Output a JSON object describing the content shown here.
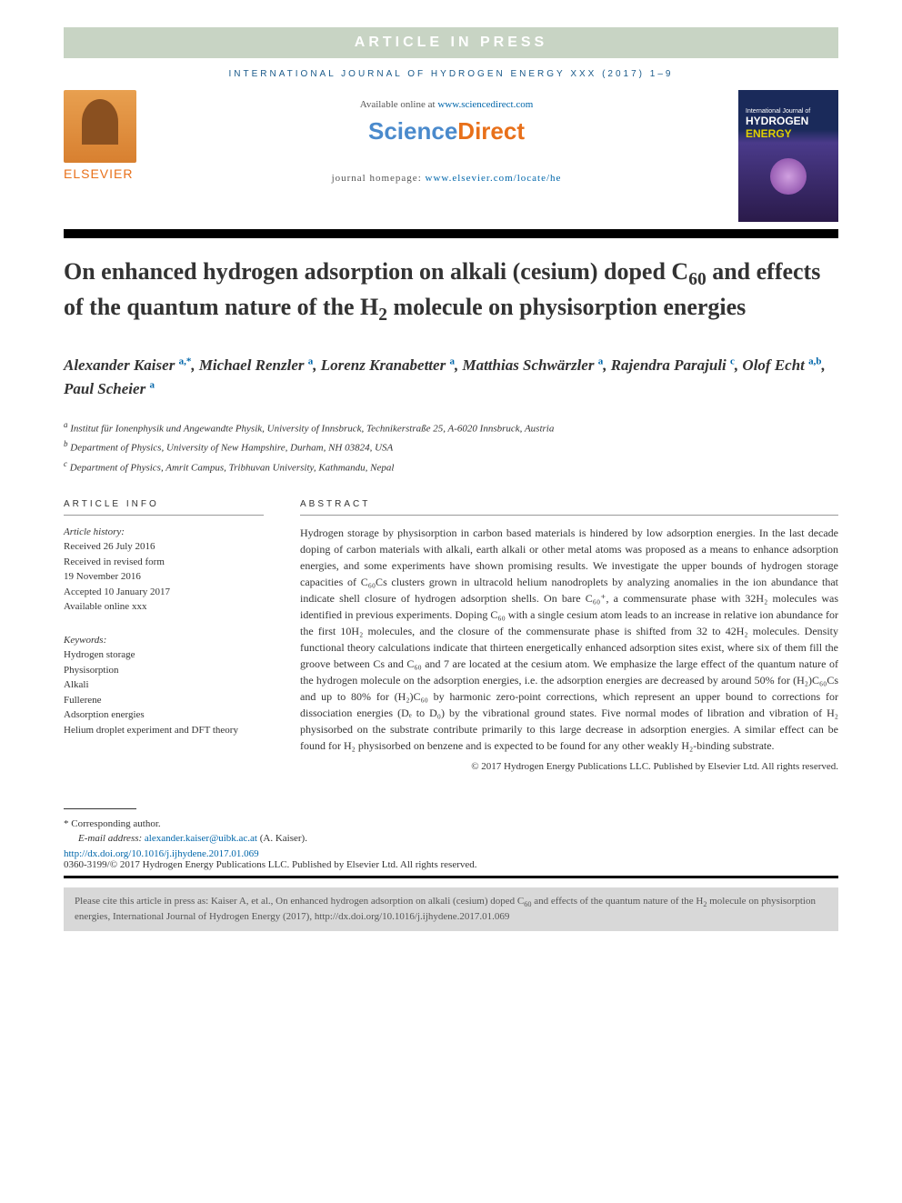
{
  "press_banner": "ARTICLE IN PRESS",
  "journal_header": "INTERNATIONAL JOURNAL OF HYDROGEN ENERGY XXX (2017) 1–9",
  "elsevier": "ELSEVIER",
  "available_text": "Available online at ",
  "sd_url": "www.sciencedirect.com",
  "sd_sci": "Science",
  "sd_direct": "Direct",
  "homepage_label": "journal homepage: ",
  "homepage_url": "www.elsevier.com/locate/he",
  "cover": {
    "line1": "International Journal of",
    "hydrogen": "HYDROGEN",
    "energy": "ENERGY"
  },
  "title_parts": [
    "On enhanced hydrogen adsorption on alkali (cesium) doped C",
    "60",
    " and effects of the quantum nature of the H",
    "2",
    " molecule on physisorption energies"
  ],
  "authors": [
    {
      "name": "Alexander Kaiser",
      "aff": "a,*"
    },
    {
      "name": "Michael Renzler",
      "aff": "a"
    },
    {
      "name": "Lorenz Kranabetter",
      "aff": "a"
    },
    {
      "name": "Matthias Schwärzler",
      "aff": "a"
    },
    {
      "name": "Rajendra Parajuli",
      "aff": "c"
    },
    {
      "name": "Olof Echt",
      "aff": "a,b"
    },
    {
      "name": "Paul Scheier",
      "aff": "a"
    }
  ],
  "affiliations": [
    {
      "sup": "a",
      "text": "Institut für Ionenphysik und Angewandte Physik, University of Innsbruck, Technikerstraße 25, A-6020 Innsbruck, Austria"
    },
    {
      "sup": "b",
      "text": "Department of Physics, University of New Hampshire, Durham, NH 03824, USA"
    },
    {
      "sup": "c",
      "text": "Department of Physics, Amrit Campus, Tribhuvan University, Kathmandu, Nepal"
    }
  ],
  "info_heading": "ARTICLE INFO",
  "abstract_heading": "ABSTRACT",
  "history_label": "Article history:",
  "history": [
    "Received 26 July 2016",
    "Received in revised form",
    "19 November 2016",
    "Accepted 10 January 2017",
    "Available online xxx"
  ],
  "keywords_label": "Keywords:",
  "keywords": [
    "Hydrogen storage",
    "Physisorption",
    "Alkali",
    "Fullerene",
    "Adsorption energies",
    "Helium droplet experiment and DFT theory"
  ],
  "abstract": "Hydrogen storage by physisorption in carbon based materials is hindered by low adsorption energies. In the last decade doping of carbon materials with alkali, earth alkali or other metal atoms was proposed as a means to enhance adsorption energies, and some experiments have shown promising results. We investigate the upper bounds of hydrogen storage capacities of C₆₀Cs clusters grown in ultracold helium nanodroplets by analyzing anomalies in the ion abundance that indicate shell closure of hydrogen adsorption shells. On bare C₆₀⁺, a commensurate phase with 32H₂ molecules was identified in previous experiments. Doping C₆₀ with a single cesium atom leads to an increase in relative ion abundance for the first 10H₂ molecules, and the closure of the commensurate phase is shifted from 32 to 42H₂ molecules. Density functional theory calculations indicate that thirteen energetically enhanced adsorption sites exist, where six of them fill the groove between Cs and C₆₀ and 7 are located at the cesium atom. We emphasize the large effect of the quantum nature of the hydrogen molecule on the adsorption energies, i.e. the adsorption energies are decreased by around 50% for (H₂)C₆₀Cs and up to 80% for (H₂)C₆₀ by harmonic zero-point corrections, which represent an upper bound to corrections for dissociation energies (Dₑ to D₀) by the vibrational ground states. Five normal modes of libration and vibration of H₂ physisorbed on the substrate contribute primarily to this large decrease in adsorption energies. A similar effect can be found for H₂ physisorbed on benzene and is expected to be found for any other weakly H₂-binding substrate.",
  "copyright": "© 2017 Hydrogen Energy Publications LLC. Published by Elsevier Ltd. All rights reserved.",
  "corresp_label": "* Corresponding author.",
  "email_label": "E-mail address: ",
  "email": "alexander.kaiser@uibk.ac.at",
  "email_name": " (A. Kaiser).",
  "doi_url": "http://dx.doi.org/10.1016/j.ijhydene.2017.01.069",
  "issn": "0360-3199/© 2017 Hydrogen Energy Publications LLC. Published by Elsevier Ltd. All rights reserved.",
  "cite_prefix": "Please cite this article in press as: Kaiser A, et al., On enhanced hydrogen adsorption on alkali (cesium) doped C",
  "cite_mid1": " and effects of the quantum nature of the H",
  "cite_mid2": " molecule on physisorption energies, International Journal of Hydrogen Energy (2017), http://dx.doi.org/10.1016/j.ijhydene.2017.01.069"
}
